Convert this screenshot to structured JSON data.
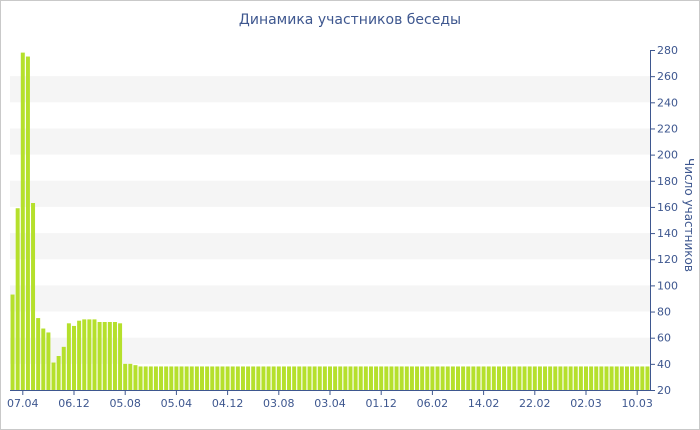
{
  "chart_data": {
    "type": "bar",
    "title": "Динамика участников беседы",
    "xlabel": "",
    "ylabel": "Число участников",
    "ylim": [
      20,
      280
    ],
    "yticks": [
      20,
      40,
      60,
      80,
      100,
      120,
      140,
      160,
      180,
      200,
      220,
      240,
      260,
      280
    ],
    "y_axis_position": "right",
    "grid": "alternating horizontal bands",
    "bar_color": "#b5e02c",
    "band_color": "#f5f5f5",
    "text_color": "#3e578f",
    "x_tick_labels": [
      {
        "label": "07.04",
        "index": 2
      },
      {
        "label": "06.12",
        "index": 12
      },
      {
        "label": "05.08",
        "index": 22
      },
      {
        "label": "05.04",
        "index": 32
      },
      {
        "label": "04.12",
        "index": 42
      },
      {
        "label": "03.08",
        "index": 52
      },
      {
        "label": "03.04",
        "index": 62
      },
      {
        "label": "01.12",
        "index": 72
      },
      {
        "label": "06.02",
        "index": 82
      },
      {
        "label": "14.02",
        "index": 92
      },
      {
        "label": "22.02",
        "index": 102
      },
      {
        "label": "02.03",
        "index": 112
      },
      {
        "label": "10.03",
        "index": 122
      }
    ],
    "values": [
      93,
      159,
      278,
      275,
      163,
      75,
      67,
      64,
      41,
      46,
      53,
      71,
      69,
      73,
      74,
      74,
      74,
      72,
      72,
      72,
      72,
      71,
      40,
      40,
      39,
      38,
      38,
      38,
      38,
      38,
      38,
      38,
      38,
      38,
      38,
      38,
      38,
      38,
      38,
      38,
      38,
      38,
      38,
      38,
      38,
      38,
      38,
      38,
      38,
      38,
      38,
      38,
      38,
      38,
      38,
      38,
      38,
      38,
      38,
      38,
      38,
      38,
      38,
      38,
      38,
      38,
      38,
      38,
      38,
      38,
      38,
      38,
      38,
      38,
      38,
      38,
      38,
      38,
      38,
      38,
      38,
      38,
      38,
      38,
      38,
      38,
      38,
      38,
      38,
      38,
      38,
      38,
      38,
      38,
      38,
      38,
      38,
      38,
      38,
      38,
      38,
      38,
      38,
      38,
      38,
      38,
      38,
      38,
      38,
      38,
      38,
      38,
      38,
      38,
      38,
      38,
      38,
      38,
      38,
      38,
      38,
      38,
      38,
      38,
      38
    ]
  }
}
